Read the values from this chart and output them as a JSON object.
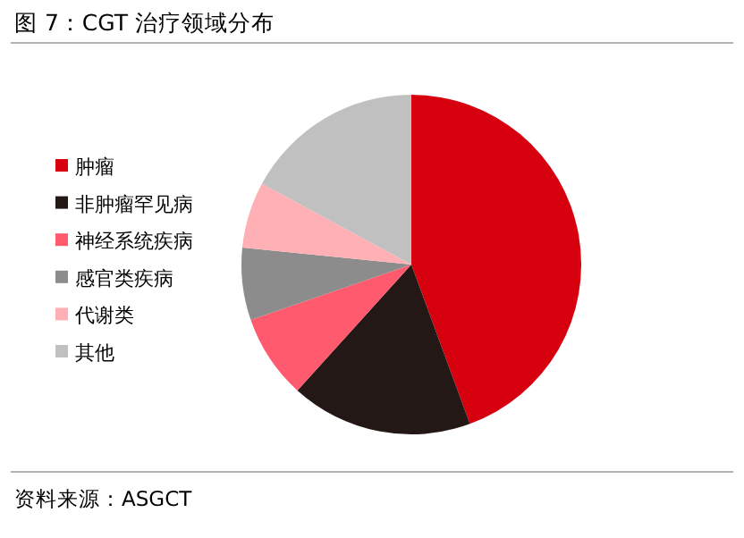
{
  "chart_data": {
    "type": "pie",
    "title": "图 7：CGT 治疗领域分布",
    "categories": [
      "肿瘤",
      "非肿瘤罕见病",
      "神经系统疾病",
      "感官类疾病",
      "代谢类",
      "其他"
    ],
    "values": [
      44.4,
      17.3,
      8.0,
      6.9,
      6.3,
      17.1
    ],
    "colors": [
      "#d7000f",
      "#231815",
      "#ff5a6e",
      "#8c8c8c",
      "#ffb0b4",
      "#c0c0c0"
    ],
    "legend": "left",
    "annotations": [
      "资料来源：ASGCT"
    ]
  }
}
